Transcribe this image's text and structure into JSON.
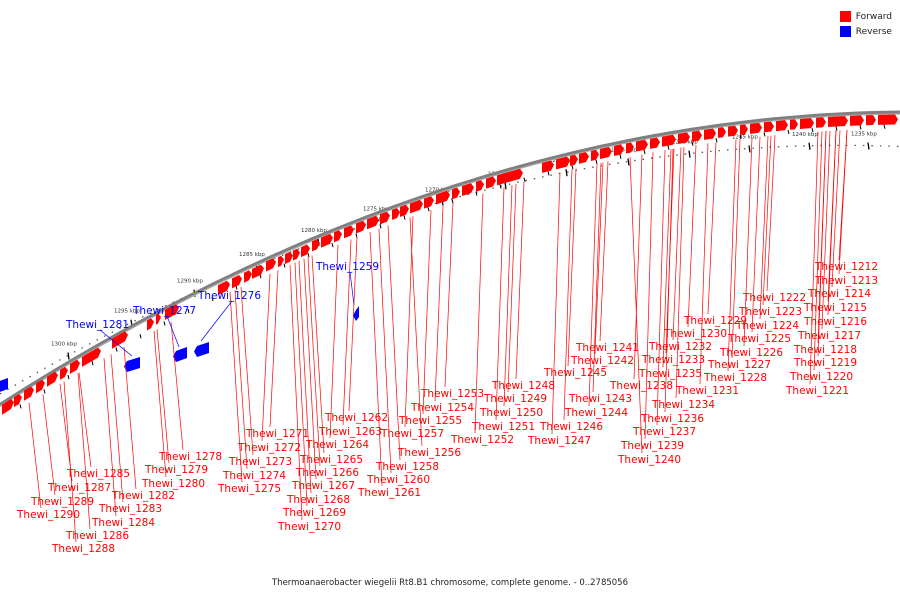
{
  "caption": "Thermoanaerobacter wiegelii Rt8.B1 chromosome, complete genome. - 0..2785056",
  "legend": [
    {
      "label": "Forward",
      "color": "#ff0000"
    },
    {
      "label": "Reverse",
      "color": "#0000ff"
    }
  ],
  "colors": {
    "forward": "#ff0000",
    "reverse": "#0000ff",
    "backbone": "#808080",
    "ruler": "#000000"
  },
  "ruler_labels": [
    "1235 kbp",
    "1240 kbp",
    "1245 kbp",
    "1250 kbp",
    "1255 kbp",
    "1260 kbp",
    "1265 kbp",
    "1270 kbp",
    "1275 kbp",
    "1280 kbp",
    "1285 kbp",
    "1290 kbp",
    "1295 kbp",
    "1300 kbp"
  ],
  "reverse_genes": [
    "Thewi_1259",
    "Thewi_1276",
    "Thewi_1277",
    "Thewi_1281"
  ],
  "forward_genes": [
    "Thewi_1212",
    "Thewi_1213",
    "Thewi_1214",
    "Thewi_1215",
    "Thewi_1216",
    "Thewi_1217",
    "Thewi_1218",
    "Thewi_1219",
    "Thewi_1220",
    "Thewi_1221",
    "Thewi_1222",
    "Thewi_1223",
    "Thewi_1224",
    "Thewi_1225",
    "Thewi_1226",
    "Thewi_1227",
    "Thewi_1228",
    "Thewi_1229",
    "Thewi_1230",
    "Thewi_1231",
    "Thewi_1232",
    "Thewi_1233",
    "Thewi_1234",
    "Thewi_1235",
    "Thewi_1236",
    "Thewi_1237",
    "Thewi_1238",
    "Thewi_1239",
    "Thewi_1240",
    "Thewi_1241",
    "Thewi_1242",
    "Thewi_1243",
    "Thewi_1244",
    "Thewi_1245",
    "Thewi_1246",
    "Thewi_1247",
    "Thewi_1248",
    "Thewi_1249",
    "Thewi_1250",
    "Thewi_1251",
    "Thewi_1252",
    "Thewi_1253",
    "Thewi_1254",
    "Thewi_1255",
    "Thewi_1256",
    "Thewi_1257",
    "Thewi_1258",
    "Thewi_1260",
    "Thewi_1261",
    "Thewi_1262",
    "Thewi_1263",
    "Thewi_1264",
    "Thewi_1265",
    "Thewi_1266",
    "Thewi_1267",
    "Thewi_1268",
    "Thewi_1269",
    "Thewi_1270",
    "Thewi_1271",
    "Thewi_1272",
    "Thewi_1273",
    "Thewi_1274",
    "Thewi_1275",
    "Thewi_1278",
    "Thewi_1279",
    "Thewi_1280",
    "Thewi_1282",
    "Thewi_1283",
    "Thewi_1284",
    "Thewi_1285",
    "Thewi_1286",
    "Thewi_1287",
    "Thewi_1288",
    "Thewi_1289",
    "Thewi_1290"
  ]
}
